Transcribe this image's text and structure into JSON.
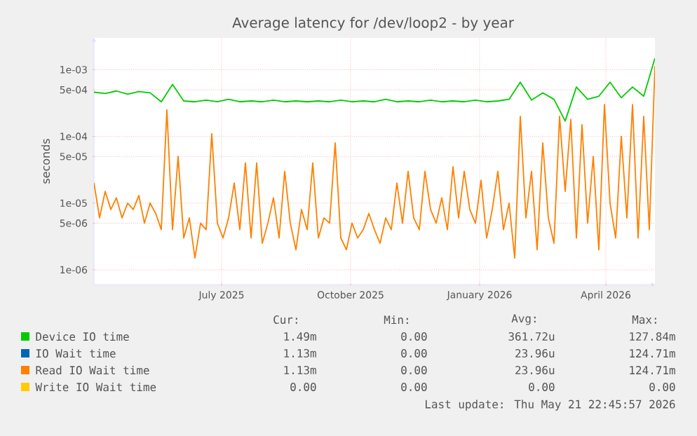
{
  "chart_data": {
    "type": "line",
    "title": "Average latency for /dev/loop2 - by year",
    "ylabel": "seconds",
    "log": "y",
    "grid": true,
    "legend": "bottom",
    "xlim": [
      "2025-04-01",
      "2026-05-06"
    ],
    "xticks": [
      {
        "value": "2025-07-01",
        "label": "July 2025"
      },
      {
        "value": "2025-10-01",
        "label": "October 2025"
      },
      {
        "value": "2026-01-01",
        "label": "January 2026"
      },
      {
        "value": "2026-04-01",
        "label": "April 2026"
      }
    ],
    "ylim": [
      6e-07,
      0.003
    ],
    "yticks": [
      {
        "value": 1e-06,
        "label": "1e-06"
      },
      {
        "value": 5e-06,
        "label": "5e-06"
      },
      {
        "value": 1e-05,
        "label": "1e-05"
      },
      {
        "value": 5e-05,
        "label": "5e-05"
      },
      {
        "value": 0.0001,
        "label": "1e-04"
      },
      {
        "value": 0.0005,
        "label": "5e-04"
      },
      {
        "value": 0.001,
        "label": "1e-03"
      }
    ],
    "x": [
      "2025-04-01",
      "2025-04-05",
      "2025-04-09",
      "2025-04-13",
      "2025-04-17",
      "2025-04-21",
      "2025-04-25",
      "2025-04-29",
      "2025-05-03",
      "2025-05-07",
      "2025-05-11",
      "2025-05-15",
      "2025-05-19",
      "2025-05-23",
      "2025-05-27",
      "2025-05-31",
      "2025-06-04",
      "2025-06-08",
      "2025-06-12",
      "2025-06-16",
      "2025-06-20",
      "2025-06-24",
      "2025-06-28",
      "2025-07-02",
      "2025-07-06",
      "2025-07-10",
      "2025-07-14",
      "2025-07-18",
      "2025-07-22",
      "2025-07-26",
      "2025-07-30",
      "2025-08-03",
      "2025-08-07",
      "2025-08-11",
      "2025-08-15",
      "2025-08-19",
      "2025-08-23",
      "2025-08-27",
      "2025-08-31",
      "2025-09-04",
      "2025-09-08",
      "2025-09-12",
      "2025-09-16",
      "2025-09-20",
      "2025-09-24",
      "2025-09-28",
      "2025-10-02",
      "2025-10-06",
      "2025-10-10",
      "2025-10-14",
      "2025-10-18",
      "2025-10-22",
      "2025-10-26",
      "2025-10-30",
      "2025-11-03",
      "2025-11-07",
      "2025-11-11",
      "2025-11-15",
      "2025-11-19",
      "2025-11-23",
      "2025-11-27",
      "2025-12-01",
      "2025-12-05",
      "2025-12-09",
      "2025-12-13",
      "2025-12-17",
      "2025-12-21",
      "2025-12-25",
      "2025-12-29",
      "2026-01-02",
      "2026-01-06",
      "2026-01-10",
      "2026-01-14",
      "2026-01-18",
      "2026-01-22",
      "2026-01-26",
      "2026-01-30",
      "2026-02-03",
      "2026-02-07",
      "2026-02-11",
      "2026-02-15",
      "2026-02-19",
      "2026-02-23",
      "2026-02-27",
      "2026-03-03",
      "2026-03-07",
      "2026-03-11",
      "2026-03-15",
      "2026-03-19",
      "2026-03-23",
      "2026-03-27",
      "2026-03-31",
      "2026-04-04",
      "2026-04-08",
      "2026-04-12",
      "2026-04-16",
      "2026-04-20",
      "2026-04-24",
      "2026-04-28",
      "2026-05-02",
      "2026-05-06"
    ],
    "series": [
      {
        "name": "Device IO time",
        "color": "#00cc00",
        "x": [
          "2025-04-01",
          "2025-04-09",
          "2025-04-17",
          "2025-04-25",
          "2025-05-03",
          "2025-05-11",
          "2025-05-19",
          "2025-05-27",
          "2025-06-04",
          "2025-06-12",
          "2025-06-20",
          "2025-06-28",
          "2025-07-06",
          "2025-07-14",
          "2025-07-22",
          "2025-07-30",
          "2025-08-07",
          "2025-08-15",
          "2025-08-23",
          "2025-08-31",
          "2025-09-08",
          "2025-09-16",
          "2025-09-24",
          "2025-10-02",
          "2025-10-10",
          "2025-10-18",
          "2025-10-26",
          "2025-11-03",
          "2025-11-11",
          "2025-11-19",
          "2025-11-27",
          "2025-12-05",
          "2025-12-13",
          "2025-12-21",
          "2025-12-29",
          "2026-01-06",
          "2026-01-14",
          "2026-01-22",
          "2026-01-30",
          "2026-02-07",
          "2026-02-15",
          "2026-02-23",
          "2026-03-03",
          "2026-03-11",
          "2026-03-19",
          "2026-03-27",
          "2026-04-04",
          "2026-04-12",
          "2026-04-20",
          "2026-04-28",
          "2026-05-06"
        ],
        "values": [
          0.00046,
          0.00044,
          0.00048,
          0.00043,
          0.00047,
          0.00045,
          0.00033,
          0.0006,
          0.00034,
          0.00033,
          0.00035,
          0.00033,
          0.00036,
          0.00033,
          0.00034,
          0.00033,
          0.00035,
          0.00033,
          0.00034,
          0.00033,
          0.00034,
          0.00033,
          0.00035,
          0.00033,
          0.00034,
          0.00033,
          0.00036,
          0.00033,
          0.00034,
          0.00033,
          0.00035,
          0.00033,
          0.00034,
          0.00033,
          0.00035,
          0.00033,
          0.00034,
          0.00036,
          0.00065,
          0.00035,
          0.00045,
          0.00036,
          0.00017,
          0.00055,
          0.00036,
          0.0004,
          0.00065,
          0.00038,
          0.00055,
          0.0004,
          0.00149
        ]
      },
      {
        "name": "IO Wait time",
        "color": "#0066b3",
        "values": [
          null,
          null,
          null,
          null,
          null,
          null,
          null,
          null,
          null,
          null,
          null,
          null,
          null,
          null,
          null,
          null,
          null,
          null,
          null,
          null,
          null,
          null,
          null,
          null,
          null,
          null,
          null,
          null,
          null,
          null,
          null,
          null,
          null,
          null,
          null,
          null,
          null,
          null,
          null,
          null,
          null,
          null,
          null,
          null,
          null,
          null,
          null,
          null,
          null,
          null,
          null,
          null,
          null,
          null,
          null,
          null,
          null,
          null,
          null,
          null,
          null,
          null,
          null,
          null,
          null,
          null,
          null,
          null,
          null,
          null,
          null,
          null,
          null,
          null,
          null,
          null,
          null,
          null,
          null,
          null,
          null,
          null,
          null,
          null,
          null,
          null,
          null,
          null,
          null,
          null,
          null,
          null,
          null,
          null,
          null,
          null,
          null,
          null,
          null,
          null,
          null
        ]
      },
      {
        "name": "Read IO Wait time",
        "color": "#ff8000",
        "values": [
          2e-05,
          6e-06,
          1.5e-05,
          8e-06,
          1.2e-05,
          6e-06,
          1e-05,
          8e-06,
          1.3e-05,
          5e-06,
          1e-05,
          7e-06,
          4e-06,
          0.00025,
          4e-06,
          5e-05,
          3e-06,
          6e-06,
          1.5e-06,
          5e-06,
          4e-06,
          0.00011,
          5e-06,
          3e-06,
          6e-06,
          2e-05,
          4e-06,
          4e-05,
          3e-06,
          4e-05,
          2.5e-06,
          5e-06,
          1.2e-05,
          3e-06,
          3e-05,
          5e-06,
          2e-06,
          8e-06,
          4e-06,
          4e-05,
          3e-06,
          6e-06,
          5e-06,
          8e-05,
          3e-06,
          2e-06,
          5e-06,
          3e-06,
          4e-06,
          7e-06,
          4e-06,
          2.5e-06,
          6e-06,
          4e-06,
          2e-05,
          5e-06,
          3e-05,
          6e-06,
          4e-06,
          3e-05,
          8e-06,
          5e-06,
          1.2e-05,
          4e-06,
          3.5e-05,
          6e-06,
          3e-05,
          8e-06,
          5e-06,
          2.2e-05,
          3e-06,
          8e-06,
          3e-05,
          4e-06,
          1e-05,
          1.5e-06,
          0.0002,
          6e-06,
          3e-05,
          2e-06,
          8e-05,
          6e-06,
          2.5e-06,
          0.0002,
          1.5e-05,
          0.00018,
          3e-06,
          0.00015,
          5e-06,
          5e-05,
          2e-06,
          0.0003,
          1e-05,
          3e-06,
          0.0001,
          6e-06,
          0.0003,
          3e-06,
          0.0002,
          4e-06,
          0.00113
        ]
      },
      {
        "name": "Write IO Wait time",
        "color": "#ffcc00",
        "values": [
          null,
          null,
          null,
          null,
          null,
          null,
          null,
          null,
          null,
          null,
          null,
          null,
          null,
          null,
          null,
          null,
          null,
          null,
          null,
          null,
          null,
          null,
          null,
          null,
          null,
          null,
          null,
          null,
          null,
          null,
          null,
          null,
          null,
          null,
          null,
          null,
          null,
          null,
          null,
          null,
          null,
          null,
          null,
          null,
          null,
          null,
          null,
          null,
          null,
          null,
          null,
          null,
          null,
          null,
          null,
          null,
          null,
          null,
          null,
          null,
          null,
          null,
          null,
          null,
          null,
          null,
          null,
          null,
          null,
          null,
          null,
          null,
          null,
          null,
          null,
          null,
          null,
          null,
          null,
          null,
          null,
          null,
          null,
          null,
          null,
          null,
          null,
          null,
          null,
          null,
          null,
          null,
          null,
          null,
          null,
          null,
          null,
          null,
          null,
          null,
          null
        ]
      }
    ],
    "annotations": [
      "Cur:",
      "Min:",
      "Avg:",
      "Max:",
      "1.49m",
      "0.00",
      "361.72u",
      "127.84m",
      "1.13m",
      "0.00",
      "23.96u",
      "124.71m",
      "1.13m",
      "0.00",
      "23.96u",
      "124.71m",
      "0.00",
      "0.00",
      "0.00",
      "0.00",
      "Last update: Thu May 21 22:45:57 2026"
    ]
  }
}
